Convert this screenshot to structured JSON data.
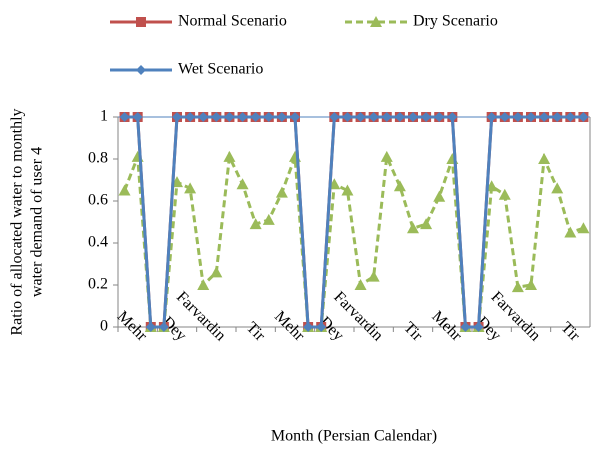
{
  "chart_data": {
    "type": "line",
    "y_label": [
      "Ratio of allocated water to monthly",
      "water demand of user 4"
    ],
    "x_label": "Month (Persian Calendar)",
    "categories": [
      null,
      "Mehr",
      null,
      null,
      "Dey",
      null,
      null,
      "Farvardin",
      null,
      null,
      "Tir",
      null,
      null,
      "Mehr",
      null,
      null,
      "Dey",
      null,
      null,
      "Farvardin",
      null,
      null,
      "Tir",
      null,
      null,
      "Mehr",
      null,
      null,
      "Dey",
      null,
      null,
      "Farvardin",
      null,
      null,
      "Tir",
      null
    ],
    "ylim": [
      0,
      1
    ],
    "yticks": [
      0,
      0.2,
      0.4,
      0.6,
      0.8,
      1
    ],
    "series": [
      {
        "name": "Normal Scenario",
        "color": "#c0504d",
        "marker": "square",
        "dash": false,
        "values": [
          1,
          1,
          0,
          0,
          1,
          1,
          1,
          1,
          1,
          1,
          1,
          1,
          1,
          1,
          0,
          0,
          1,
          1,
          1,
          1,
          1,
          1,
          1,
          1,
          1,
          1,
          0,
          0,
          1,
          1,
          1,
          1,
          1,
          1,
          1,
          1
        ]
      },
      {
        "name": "Dry Scenario",
        "color": "#9bbb59",
        "marker": "triangle",
        "dash": true,
        "values": [
          0.65,
          0.81,
          0,
          0,
          0.69,
          0.66,
          0.2,
          0.26,
          0.81,
          0.68,
          0.49,
          0.51,
          0.64,
          0.81,
          0,
          0,
          0.68,
          0.65,
          0.2,
          0.24,
          0.81,
          0.67,
          0.47,
          0.49,
          0.62,
          0.8,
          0,
          0,
          0.67,
          0.63,
          0.19,
          0.2,
          0.8,
          0.66,
          0.45,
          0.47
        ]
      },
      {
        "name": "Wet Scenario",
        "color": "#4f81bd",
        "marker": "diamond",
        "dash": false,
        "values": [
          1,
          1,
          0,
          0,
          1,
          1,
          1,
          1,
          1,
          1,
          1,
          1,
          1,
          1,
          0,
          0,
          1,
          1,
          1,
          1,
          1,
          1,
          1,
          1,
          1,
          1,
          0,
          0,
          1,
          1,
          1,
          1,
          1,
          1,
          1,
          1
        ]
      }
    ]
  }
}
